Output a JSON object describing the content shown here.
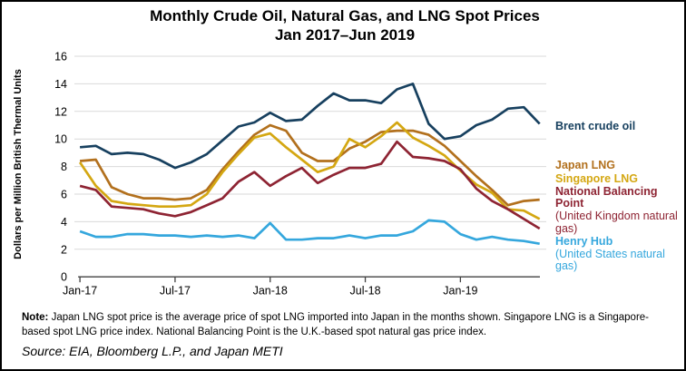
{
  "title": {
    "line1": "Monthly Crude Oil, Natural Gas, and LNG Spot Prices",
    "line2": "Jan 2017–Jun 2019"
  },
  "y_axis_title": "Dollars per Million British Thermal Units",
  "note": {
    "label": "Note:",
    "text": " Japan LNG spot price is the average price of spot LNG imported into Japan in the months shown. Singapore LNG is a Singapore-based spot LNG price index. National Balancing Point is the U.K.-based spot natural gas price index."
  },
  "source": {
    "text": "Source: EIA, Bloomberg L.P., and Japan METI"
  },
  "legend": {
    "items": [
      {
        "label": "Brent crude oil",
        "sublabel": ""
      },
      {
        "label": "Japan LNG",
        "sublabel": ""
      },
      {
        "label": "Singapore LNG",
        "sublabel": ""
      },
      {
        "label": "National Balancing Point",
        "sublabel": "(United Kingdom natural gas)"
      },
      {
        "label": "Henry Hub",
        "sublabel": "(United States natural gas)"
      }
    ]
  },
  "chart_data": {
    "type": "line",
    "title": "Monthly Crude Oil, Natural Gas, and LNG Spot Prices, Jan 2017–Jun 2019",
    "ylabel": "Dollars per Million British Thermal Units",
    "ylim": [
      0,
      16
    ],
    "y_ticks": [
      0,
      2,
      4,
      6,
      8,
      10,
      12,
      14,
      16
    ],
    "grid": true,
    "legend_position": "right",
    "x": [
      "Jan-17",
      "Feb-17",
      "Mar-17",
      "Apr-17",
      "May-17",
      "Jun-17",
      "Jul-17",
      "Aug-17",
      "Sep-17",
      "Oct-17",
      "Nov-17",
      "Dec-17",
      "Jan-18",
      "Feb-18",
      "Mar-18",
      "Apr-18",
      "May-18",
      "Jun-18",
      "Jul-18",
      "Aug-18",
      "Sep-18",
      "Oct-18",
      "Nov-18",
      "Dec-18",
      "Jan-19",
      "Feb-19",
      "Mar-19",
      "Apr-19",
      "May-19",
      "Jun-19"
    ],
    "x_tick_labels": [
      "Jan-17",
      "Jul-17",
      "Jan-18",
      "Jul-18",
      "Jan-19"
    ],
    "x_tick_indices": [
      0,
      6,
      12,
      18,
      24
    ],
    "series": [
      {
        "name": "Brent crude oil",
        "color": "#17405f",
        "values": [
          9.4,
          9.5,
          8.9,
          9.0,
          8.9,
          8.5,
          7.9,
          8.3,
          8.9,
          9.9,
          10.9,
          11.2,
          11.9,
          11.3,
          11.4,
          12.4,
          13.3,
          12.8,
          12.8,
          12.6,
          13.6,
          14.0,
          11.1,
          10.0,
          10.2,
          11.0,
          11.4,
          12.2,
          12.3,
          11.1
        ]
      },
      {
        "name": "Japan LNG",
        "color": "#b2701d",
        "values": [
          8.4,
          8.5,
          6.5,
          6.0,
          5.7,
          5.7,
          5.6,
          5.7,
          6.3,
          7.8,
          9.1,
          10.3,
          11.0,
          10.6,
          9.0,
          8.4,
          8.4,
          9.3,
          9.8,
          10.5,
          10.6,
          10.6,
          10.3,
          9.5,
          8.4,
          7.3,
          6.3,
          5.2,
          5.5,
          5.6
        ]
      },
      {
        "name": "Singapore LNG",
        "color": "#d4a712",
        "values": [
          8.3,
          6.6,
          5.5,
          5.3,
          5.2,
          5.1,
          5.1,
          5.2,
          6.0,
          7.6,
          8.9,
          10.1,
          10.4,
          9.4,
          8.5,
          7.6,
          8.0,
          10.0,
          9.4,
          10.2,
          11.2,
          10.1,
          9.5,
          8.8,
          7.7,
          6.7,
          6.1,
          4.9,
          4.8,
          4.2
        ]
      },
      {
        "name": "National Balancing Point (United Kingdom natural gas)",
        "color": "#8e2433",
        "values": [
          6.6,
          6.3,
          5.1,
          5.0,
          4.9,
          4.6,
          4.4,
          4.7,
          5.2,
          5.7,
          6.9,
          7.6,
          6.6,
          7.3,
          7.9,
          6.8,
          7.4,
          7.9,
          7.9,
          8.2,
          9.8,
          8.7,
          8.6,
          8.4,
          7.8,
          6.4,
          5.5,
          4.9,
          4.2,
          3.5
        ]
      },
      {
        "name": "Henry Hub (United States natural gas)",
        "color": "#35a7dd",
        "values": [
          3.3,
          2.9,
          2.9,
          3.1,
          3.1,
          3.0,
          3.0,
          2.9,
          3.0,
          2.9,
          3.0,
          2.8,
          3.9,
          2.7,
          2.7,
          2.8,
          2.8,
          3.0,
          2.8,
          3.0,
          3.0,
          3.3,
          4.1,
          4.0,
          3.1,
          2.7,
          2.9,
          2.7,
          2.6,
          2.4
        ]
      }
    ],
    "colors": {
      "grid": "#d9d9d9",
      "axis": "#404040",
      "text": "#000000"
    }
  }
}
